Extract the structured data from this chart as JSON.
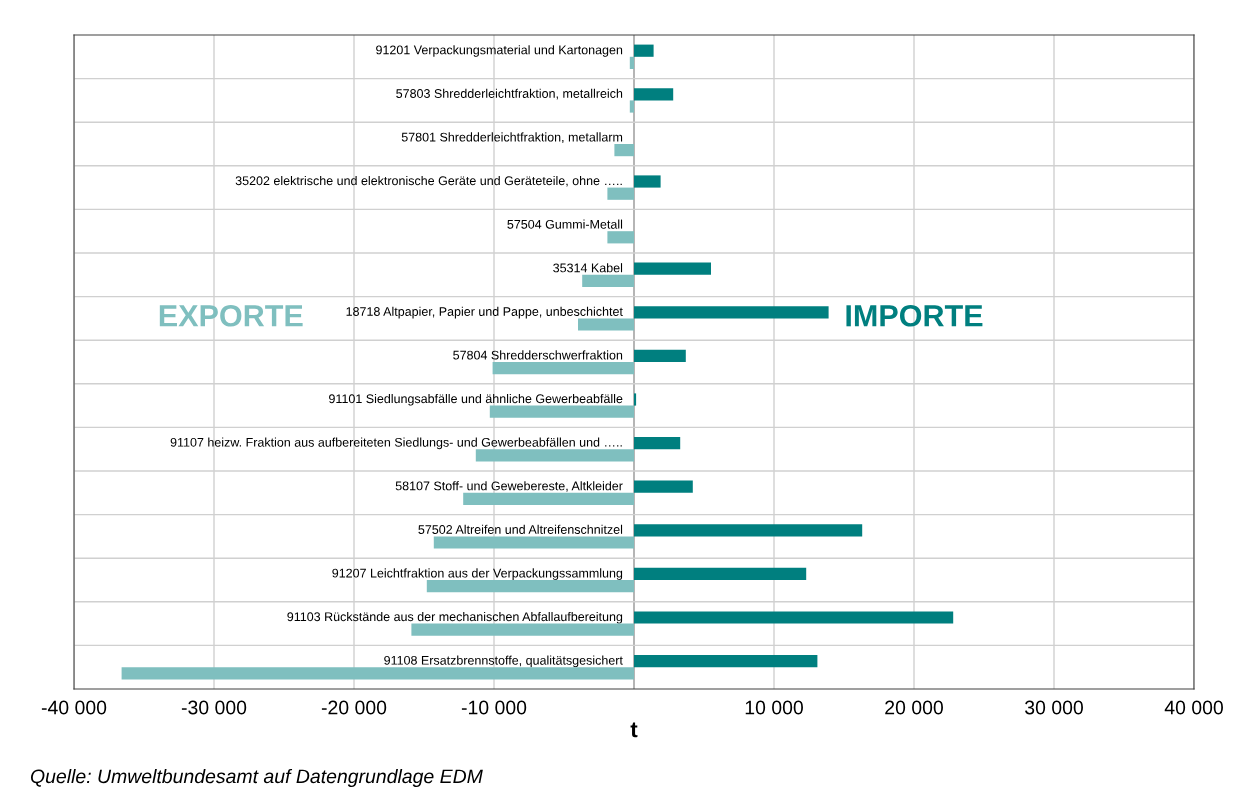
{
  "chart_data": {
    "type": "bar",
    "orientation": "horizontal",
    "xlabel": "t",
    "categories": [
      "91201 Verpackungsmaterial und Kartonagen",
      "57803 Shredderleichtfraktion, metallreich",
      "57801 Shredderleichtfraktion, metallarm",
      "35202 elektrische und elektronische Geräte und Geräteteile, ohne …..",
      "57504 Gummi-Metall",
      "35314 Kabel",
      "18718 Altpapier, Papier und Pappe, unbeschichtet",
      "57804 Shredderschwerfraktion",
      "91101 Siedlungsabfälle und ähnliche Gewerbeabfälle",
      "91107 heizw. Fraktion aus aufbereiteten Siedlungs- und Gewerbeabfällen und …..",
      "58107 Stoff- und Gewebereste, Altkleider",
      "57502 Altreifen und Altreifenschnitzel",
      "91207 Leichtfraktion aus der Verpackungssammlung",
      "91103 Rückstände aus der mechanischen Abfallaufbereitung",
      "91108 Ersatzbrennstoffe, qualitätsgesichert"
    ],
    "series": [
      {
        "name": "IMPORTE",
        "color": "#007f7f",
        "values": [
          1400,
          2800,
          0,
          1900,
          0,
          5500,
          13900,
          3700,
          150,
          3300,
          4200,
          16300,
          12300,
          22800,
          13100
        ]
      },
      {
        "name": "EXPORTE",
        "color": "#7fbfbf",
        "values": [
          -300,
          -300,
          -1400,
          -1900,
          -1900,
          -3700,
          -4000,
          -10100,
          -10300,
          -11300,
          -12200,
          -14300,
          -14800,
          -15900,
          -36600
        ]
      }
    ],
    "xlim": [
      -40000,
      40000
    ],
    "xticks": [
      {
        "value": -40000,
        "label": "-40 000"
      },
      {
        "value": -30000,
        "label": "-30 000"
      },
      {
        "value": -20000,
        "label": "-20 000"
      },
      {
        "value": -10000,
        "label": "-10 000"
      },
      {
        "value": 0,
        "label": null
      },
      {
        "value": 10000,
        "label": "10 000"
      },
      {
        "value": 20000,
        "label": "20 000"
      },
      {
        "value": 30000,
        "label": "30 000"
      },
      {
        "value": 40000,
        "label": "40 000"
      }
    ],
    "grid": true,
    "legend": false,
    "annotations": [
      "Quelle: Umweltbundesamt auf Datengrundlage EDM"
    ]
  }
}
